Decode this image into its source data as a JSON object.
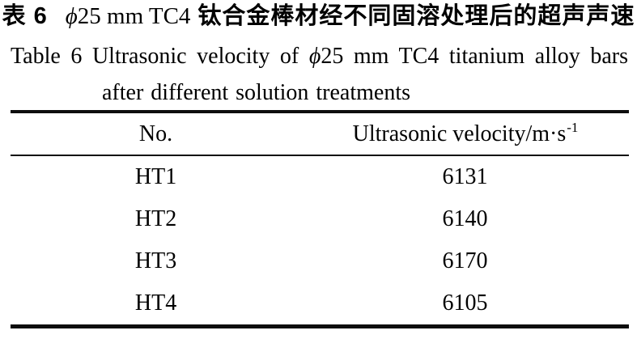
{
  "caption": {
    "zh": {
      "table_label": "表 6",
      "phi": "ϕ",
      "spec": "25 mm TC4",
      "text": "钛合金棒材经不同固溶处理后的超声声速"
    },
    "en": {
      "table_label": "Table 6",
      "title_before_phi": "Ultrasonic velocity of",
      "phi": "ϕ",
      "title_after_phi": "25 mm TC4 titanium alloy bars",
      "title_line2": "after different solution treatments"
    }
  },
  "table": {
    "columns": [
      {
        "label": "No."
      },
      {
        "label": "Ultrasonic velocity/m·s",
        "unit_exponent": "-1"
      }
    ],
    "rows": [
      {
        "no": "HT1",
        "velocity": "6131"
      },
      {
        "no": "HT2",
        "velocity": "6140"
      },
      {
        "no": "HT3",
        "velocity": "6170"
      },
      {
        "no": "HT4",
        "velocity": "6105"
      }
    ]
  },
  "colors": {
    "background": "#ffffff",
    "text": "#000000",
    "rule": "#0d0d0d"
  }
}
